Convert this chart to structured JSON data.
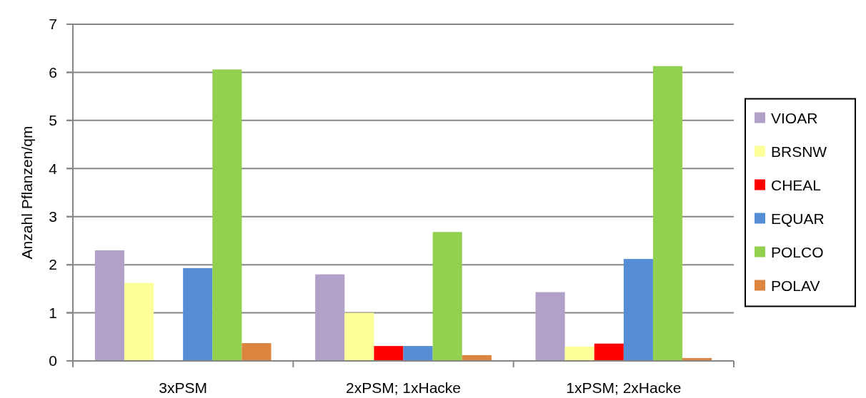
{
  "chart_data": {
    "type": "bar",
    "ylabel": "Anzahl Pflanzen/qm",
    "categories": [
      "3xPSM",
      "2xPSM; 1xHacke",
      "1xPSM; 2xHacke"
    ],
    "series": [
      {
        "name": "VIOAR",
        "color": "#b1a0c7",
        "values": [
          2.3,
          1.8,
          1.43
        ]
      },
      {
        "name": "BRSNW",
        "color": "#ffff99",
        "values": [
          1.62,
          1.0,
          0.3
        ]
      },
      {
        "name": "CHEAL",
        "color": "#ff0000",
        "values": [
          0,
          0.31,
          0.36
        ]
      },
      {
        "name": "EQUAR",
        "color": "#558ed5",
        "values": [
          1.93,
          0.31,
          2.12
        ]
      },
      {
        "name": "POLCO",
        "color": "#92d050",
        "values": [
          6.06,
          2.68,
          6.13
        ]
      },
      {
        "name": "POLAV",
        "color": "#dd843e",
        "values": [
          0.37,
          0.12,
          0.06
        ]
      }
    ],
    "ylim": [
      0,
      7
    ],
    "yticks": [
      0,
      1,
      2,
      3,
      4,
      5,
      6,
      7
    ],
    "grid": "y",
    "legend": "right"
  }
}
